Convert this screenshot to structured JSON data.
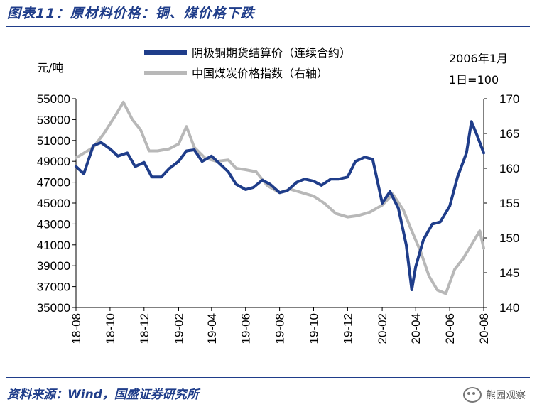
{
  "header": {
    "title": "图表11：原材料价格：铜、煤价格下跌"
  },
  "footer": {
    "source": "资料来源：Wind，国盛证券研究所",
    "watermark": "熊园观察"
  },
  "chart_data": {
    "type": "line",
    "title": "图表11：原材料价格：铜、煤价格下跌",
    "left_axis_unit": "元/吨",
    "right_axis_note_line1": "2006年1月",
    "right_axis_note_line2": "1日=100",
    "legend_placement": "top",
    "grid": false,
    "x_range": [
      "2018-08",
      "2020-08"
    ],
    "x_ticks": [
      "18-08",
      "18-10",
      "18-12",
      "19-02",
      "19-04",
      "19-06",
      "19-08",
      "19-10",
      "19-12",
      "20-02",
      "20-04",
      "20-06",
      "20-08"
    ],
    "ylim_left": [
      35000,
      55000
    ],
    "yticks_left": [
      35000,
      37000,
      39000,
      41000,
      43000,
      45000,
      47000,
      49000,
      51000,
      53000,
      55000
    ],
    "ylim_right": [
      140,
      170
    ],
    "yticks_right": [
      140,
      145,
      150,
      155,
      160,
      165,
      170
    ],
    "series": [
      {
        "name": "阴极铜期货结算价（连续合约）",
        "axis": "left",
        "color": "#1f3d8a",
        "x": [
          "2018-08-01",
          "2018-08-15",
          "2018-09-01",
          "2018-09-15",
          "2018-10-01",
          "2018-10-15",
          "2018-11-01",
          "2018-11-15",
          "2018-12-01",
          "2018-12-15",
          "2019-01-01",
          "2019-01-15",
          "2019-02-01",
          "2019-02-15",
          "2019-03-01",
          "2019-03-15",
          "2019-04-01",
          "2019-04-15",
          "2019-05-01",
          "2019-05-15",
          "2019-06-01",
          "2019-06-15",
          "2019-07-01",
          "2019-07-15",
          "2019-08-01",
          "2019-08-15",
          "2019-09-01",
          "2019-09-15",
          "2019-10-01",
          "2019-10-15",
          "2019-11-01",
          "2019-11-15",
          "2019-12-01",
          "2019-12-15",
          "2020-01-01",
          "2020-01-15",
          "2020-02-01",
          "2020-02-15",
          "2020-03-01",
          "2020-03-15",
          "2020-03-25",
          "2020-04-01",
          "2020-04-15",
          "2020-05-01",
          "2020-05-15",
          "2020-06-01",
          "2020-06-15",
          "2020-07-01",
          "2020-07-10",
          "2020-07-20",
          "2020-08-01"
        ],
        "values": [
          48500,
          47800,
          50500,
          50800,
          50200,
          49500,
          49800,
          48500,
          48900,
          47500,
          47500,
          48300,
          49000,
          50000,
          50100,
          49000,
          49500,
          48800,
          48000,
          46800,
          46300,
          46500,
          47200,
          46800,
          46000,
          46200,
          47000,
          47300,
          47100,
          46700,
          47300,
          47300,
          47500,
          49000,
          49400,
          49200,
          45000,
          46100,
          44500,
          41000,
          36700,
          38900,
          41500,
          43000,
          43200,
          44700,
          47500,
          49800,
          52800,
          51500,
          49800
        ]
      },
      {
        "name": "中国煤炭价格指数（右轴）",
        "axis": "right",
        "color": "#b8b8b8",
        "x": [
          "2018-08-01",
          "2018-09-01",
          "2018-09-20",
          "2018-10-10",
          "2018-10-25",
          "2018-11-10",
          "2018-11-25",
          "2018-12-10",
          "2018-12-25",
          "2019-01-15",
          "2019-02-01",
          "2019-02-15",
          "2019-03-01",
          "2019-03-20",
          "2019-04-10",
          "2019-05-01",
          "2019-05-15",
          "2019-06-01",
          "2019-06-20",
          "2019-07-10",
          "2019-08-01",
          "2019-08-20",
          "2019-09-10",
          "2019-10-01",
          "2019-10-20",
          "2019-11-10",
          "2019-12-01",
          "2019-12-20",
          "2020-01-10",
          "2020-02-01",
          "2020-02-20",
          "2020-03-10",
          "2020-03-25",
          "2020-04-10",
          "2020-04-25",
          "2020-05-10",
          "2020-05-25",
          "2020-06-10",
          "2020-06-25",
          "2020-07-10",
          "2020-07-25",
          "2020-08-01"
        ],
        "values": [
          161.5,
          163,
          165,
          167.5,
          169.5,
          167,
          165.5,
          162.5,
          162.5,
          162.8,
          163.5,
          166,
          163,
          161.5,
          161,
          161.2,
          160,
          159.8,
          159.5,
          157.5,
          156.5,
          157,
          156.5,
          156,
          155,
          153.5,
          153,
          153.2,
          153.7,
          154.7,
          156.3,
          154,
          151,
          148,
          144.5,
          142.5,
          142,
          145.5,
          147,
          149,
          151,
          148.5
        ]
      }
    ]
  }
}
